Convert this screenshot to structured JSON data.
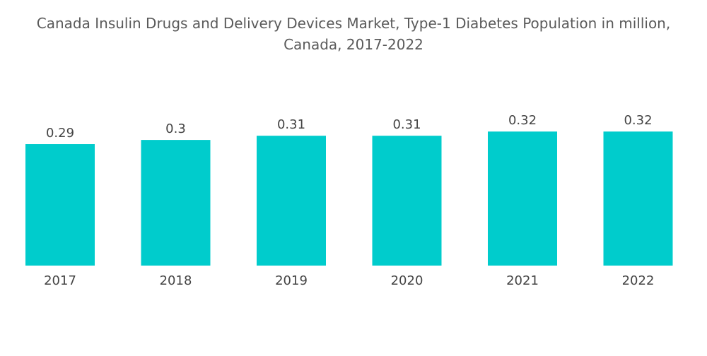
{
  "chart_data": {
    "type": "bar",
    "title_line1": "Canada Insulin Drugs and Delivery Devices Market, Type-1 Diabetes Population in million,",
    "title_line2": "Canada, 2017-2022",
    "categories": [
      "2017",
      "2018",
      "2019",
      "2020",
      "2021",
      "2022"
    ],
    "values": [
      0.29,
      0.3,
      0.31,
      0.31,
      0.32,
      0.32
    ],
    "value_labels": [
      "0.29",
      "0.3",
      "0.31",
      "0.31",
      "0.32",
      "0.32"
    ],
    "xlabel": "",
    "ylabel": "",
    "ylim": [
      0,
      0.4
    ],
    "grid": false,
    "legend": "none",
    "bar_color": "#00cccc"
  }
}
